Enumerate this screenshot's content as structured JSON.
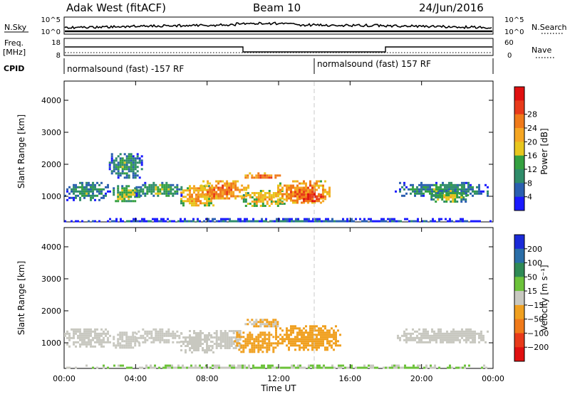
{
  "header": {
    "station": "Adak West (fitACF)",
    "beam": "Beam 10",
    "date": "24/Jun/2016"
  },
  "top_panels": {
    "nsky_label": "N.Sky",
    "nsearch_label": "N.Search",
    "freq_label_line1": "Freq.",
    "freq_label_line2": "[MHz]",
    "nave_label": "Nave",
    "cpid_label": "CPID",
    "nsky_ticks": [
      "10^5",
      "10^0"
    ],
    "nsearch_ticks": [
      "10^5",
      "10^0"
    ],
    "freq_ticks": [
      "18",
      "8"
    ],
    "nave_ticks": [
      "60",
      "0"
    ],
    "cpid_segments": [
      {
        "label": "normalsound (fast) -157 RF",
        "start_hour": 0,
        "end_hour": 14
      },
      {
        "label": "normalsound (fast) 157 RF",
        "start_hour": 14,
        "end_hour": 24
      }
    ]
  },
  "colorbars": {
    "power": {
      "label": "Power [dB]",
      "ticks": [
        "4",
        "8",
        "12",
        "16",
        "20",
        "24",
        "28"
      ],
      "colors": [
        "#1a1aff",
        "#2a5fb0",
        "#2f8c6a",
        "#34a040",
        "#e8c61e",
        "#f5a623",
        "#f07a1a",
        "#e83a1a",
        "#e01010"
      ]
    },
    "velocity": {
      "label": "Velocity [m s⁻¹]",
      "ticks": [
        "200",
        "100",
        "50",
        "15",
        "−15",
        "−50",
        "−100",
        "−200"
      ],
      "colors": [
        "#1a2ad8",
        "#2a6ea8",
        "#2f8a55",
        "#6cc23a",
        "#c8c8c0",
        "#f0a020",
        "#f07a1a",
        "#e83a1a",
        "#e01010"
      ]
    }
  },
  "axes": {
    "ylabel": "Slant Range [km]",
    "xlabel": "Time UT",
    "yticks": [
      "1000",
      "2000",
      "3000",
      "4000"
    ],
    "xticks": [
      "00:00",
      "04:00",
      "08:00",
      "12:00",
      "16:00",
      "20:00",
      "00:00"
    ]
  },
  "chart_data": [
    {
      "type": "heatmap",
      "title": "Power [dB]",
      "x_unit": "hour UT",
      "y_unit": "km",
      "xlim": [
        0,
        24
      ],
      "ylim": [
        200,
        4600
      ],
      "clim": [
        0,
        30
      ],
      "regions": [
        {
          "x": [
            0.0,
            2.6
          ],
          "y": [
            900,
            1450
          ],
          "value": 10
        },
        {
          "x": [
            2.6,
            4.2
          ],
          "y": [
            850,
            1350
          ],
          "value": 14
        },
        {
          "x": [
            2.5,
            4.4
          ],
          "y": [
            1600,
            2350
          ],
          "value": 10
        },
        {
          "x": [
            4.0,
            6.6
          ],
          "y": [
            1000,
            1450
          ],
          "value": 12
        },
        {
          "x": [
            6.5,
            8.3
          ],
          "y": [
            700,
            1350
          ],
          "value": 20
        },
        {
          "x": [
            7.5,
            10.3
          ],
          "y": [
            900,
            1500
          ],
          "value": 22
        },
        {
          "x": [
            10.0,
            12.3
          ],
          "y": [
            700,
            1200
          ],
          "value": 18
        },
        {
          "x": [
            10.1,
            12.1
          ],
          "y": [
            1550,
            1750
          ],
          "value": 24
        },
        {
          "x": [
            11.8,
            14.8
          ],
          "y": [
            800,
            1500
          ],
          "value": 22
        },
        {
          "x": [
            13.0,
            14.6
          ],
          "y": [
            850,
            1150
          ],
          "value": 27
        },
        {
          "x": [
            18.5,
            23.7
          ],
          "y": [
            1000,
            1450
          ],
          "value": 10
        },
        {
          "x": [
            20.5,
            22.6
          ],
          "y": [
            850,
            1200
          ],
          "value": 14
        },
        {
          "x": [
            0.0,
            24.0
          ],
          "y": [
            200,
            320
          ],
          "value": 6
        }
      ]
    },
    {
      "type": "heatmap",
      "title": "Velocity [m s⁻¹]",
      "x_unit": "hour UT",
      "y_unit": "km",
      "xlim": [
        0,
        24
      ],
      "ylim": [
        200,
        4600
      ],
      "clim": [
        -250,
        250
      ],
      "regions": [
        {
          "x": [
            0.0,
            2.6
          ],
          "y": [
            900,
            1450
          ],
          "value": 0
        },
        {
          "x": [
            2.6,
            4.2
          ],
          "y": [
            850,
            1350
          ],
          "value": 0
        },
        {
          "x": [
            4.0,
            6.6
          ],
          "y": [
            1000,
            1450
          ],
          "value": 0
        },
        {
          "x": [
            6.5,
            8.3
          ],
          "y": [
            700,
            1400
          ],
          "value": 0
        },
        {
          "x": [
            8.0,
            10.0
          ],
          "y": [
            800,
            1400
          ],
          "value": -10
        },
        {
          "x": [
            9.5,
            12.0
          ],
          "y": [
            700,
            1350
          ],
          "value": -45
        },
        {
          "x": [
            10.1,
            12.1
          ],
          "y": [
            1500,
            1750
          ],
          "value": -30
        },
        {
          "x": [
            11.8,
            15.5
          ],
          "y": [
            800,
            1550
          ],
          "value": -60
        },
        {
          "x": [
            18.5,
            23.7
          ],
          "y": [
            1000,
            1450
          ],
          "value": 0
        },
        {
          "x": [
            0.0,
            24.0
          ],
          "y": [
            200,
            320
          ],
          "value": 30
        }
      ]
    }
  ]
}
